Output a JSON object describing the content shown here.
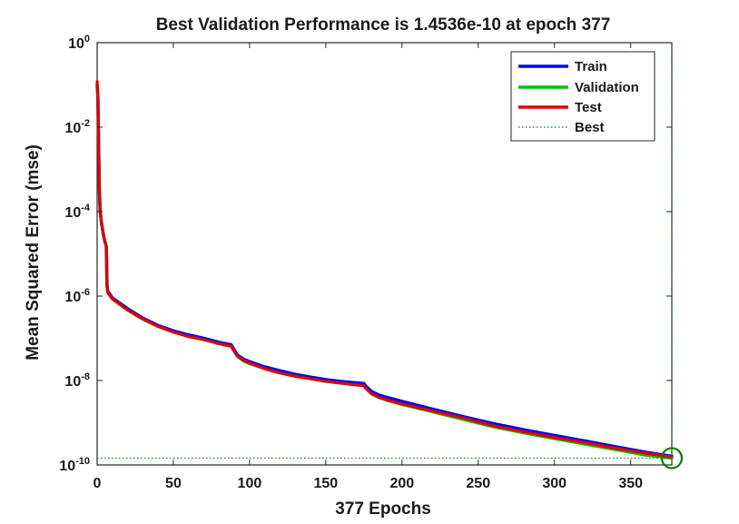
{
  "chart_data": {
    "type": "line",
    "title": "Best Validation Performance is 1.4536e-10 at epoch 377",
    "xlabel": "377 Epochs",
    "ylabel": "Mean Squared Error  (mse)",
    "xlim": [
      0,
      377
    ],
    "ylim": [
      1e-10,
      1
    ],
    "yscale": "log",
    "grid": false,
    "legend_position": "top-right",
    "x_ticks": [
      0,
      50,
      100,
      150,
      200,
      250,
      300,
      350
    ],
    "y_ticks": [
      {
        "base": "10",
        "exp": "0",
        "value": 1
      },
      {
        "base": "10",
        "exp": "-2",
        "value": 0.01
      },
      {
        "base": "10",
        "exp": "-4",
        "value": 0.0001
      },
      {
        "base": "10",
        "exp": "-6",
        "value": 1e-06
      },
      {
        "base": "10",
        "exp": "-8",
        "value": 1e-08
      },
      {
        "base": "10",
        "exp": "-10",
        "value": 1e-10
      }
    ],
    "series": [
      {
        "name": "Train",
        "color": "#0000ff",
        "x": [
          0,
          0.5,
          1,
          1.5,
          2,
          3,
          4,
          5,
          6,
          6.5,
          7,
          10,
          20,
          30,
          40,
          50,
          60,
          70,
          80,
          88,
          89,
          92,
          96,
          100,
          110,
          120,
          130,
          140,
          150,
          160,
          170,
          175,
          176,
          180,
          185,
          190,
          200,
          220,
          240,
          260,
          280,
          300,
          320,
          340,
          360,
          377
        ],
        "y": [
          0.1,
          0.05,
          0.003,
          0.0003,
          0.0001,
          5e-05,
          3e-05,
          2e-05,
          1.5e-05,
          1.8e-06,
          1.3e-06,
          9e-07,
          5e-07,
          3e-07,
          2e-07,
          1.5e-07,
          1.2e-07,
          1e-07,
          8e-08,
          7e-08,
          6e-08,
          4e-08,
          3.2e-08,
          2.8e-08,
          2.1e-08,
          1.7e-08,
          1.4e-08,
          1.2e-08,
          1.05e-08,
          9.5e-09,
          8.8e-09,
          8.5e-09,
          7.5e-09,
          5.5e-09,
          4.5e-09,
          4e-09,
          3.2e-09,
          2.1e-09,
          1.4e-09,
          9.5e-10,
          6.8e-10,
          5e-10,
          3.7e-10,
          2.7e-10,
          2e-10,
          1.6e-10
        ]
      },
      {
        "name": "Validation",
        "color": "#00c000",
        "x": [
          0,
          0.5,
          1,
          1.5,
          2,
          3,
          4,
          5,
          6,
          6.5,
          7,
          10,
          20,
          30,
          40,
          50,
          60,
          70,
          80,
          88,
          89,
          92,
          96,
          100,
          110,
          120,
          130,
          140,
          150,
          160,
          170,
          175,
          176,
          180,
          185,
          190,
          200,
          220,
          240,
          260,
          280,
          300,
          320,
          340,
          360,
          377
        ],
        "y": [
          0.1,
          0.05,
          0.003,
          0.0003,
          0.0001,
          5e-05,
          3e-05,
          2e-05,
          1.5e-05,
          1.6e-06,
          1.2e-06,
          8.5e-07,
          4.6e-07,
          2.8e-07,
          1.9e-07,
          1.4e-07,
          1.1e-07,
          9.2e-08,
          7.4e-08,
          6.4e-08,
          5.5e-08,
          3.7e-08,
          2.9e-08,
          2.5e-08,
          1.9e-08,
          1.5e-08,
          1.25e-08,
          1.1e-08,
          9.5e-09,
          8.6e-09,
          7.8e-09,
          7.5e-09,
          6.6e-09,
          4.8e-09,
          3.9e-09,
          3.4e-09,
          2.7e-09,
          1.8e-09,
          1.2e-09,
          8e-10,
          5.7e-10,
          4.2e-10,
          3.1e-10,
          2.3e-10,
          1.7e-10,
          1.45e-10
        ]
      },
      {
        "name": "Test",
        "color": "#e00000",
        "x": [
          0,
          0.5,
          1,
          1.5,
          2,
          3,
          4,
          5,
          6,
          6.5,
          7,
          10,
          20,
          30,
          40,
          50,
          60,
          70,
          80,
          88,
          89,
          92,
          96,
          100,
          110,
          120,
          130,
          140,
          150,
          160,
          170,
          175,
          176,
          180,
          185,
          190,
          200,
          220,
          240,
          260,
          280,
          300,
          320,
          340,
          360,
          377
        ],
        "y": [
          0.12,
          0.06,
          0.003,
          0.0003,
          0.0001,
          5e-05,
          3e-05,
          2e-05,
          1.5e-05,
          1.7e-06,
          1.2e-06,
          8.6e-07,
          4.7e-07,
          2.9e-07,
          1.9e-07,
          1.4e-07,
          1.1e-07,
          9.3e-08,
          7.5e-08,
          6.5e-08,
          5.6e-08,
          3.8e-08,
          3e-08,
          2.6e-08,
          1.9e-08,
          1.5e-08,
          1.27e-08,
          1.1e-08,
          9.6e-09,
          8.7e-09,
          7.9e-09,
          7.6e-09,
          6.7e-09,
          4.9e-09,
          4e-09,
          3.5e-09,
          2.8e-09,
          1.9e-09,
          1.3e-09,
          8.5e-10,
          6.1e-10,
          4.5e-10,
          3.4e-10,
          2.5e-10,
          1.9e-10,
          1.55e-10
        ]
      }
    ],
    "best": {
      "label": "Best",
      "color": "#008000",
      "epoch": 377,
      "value": 1.4536e-10
    }
  }
}
